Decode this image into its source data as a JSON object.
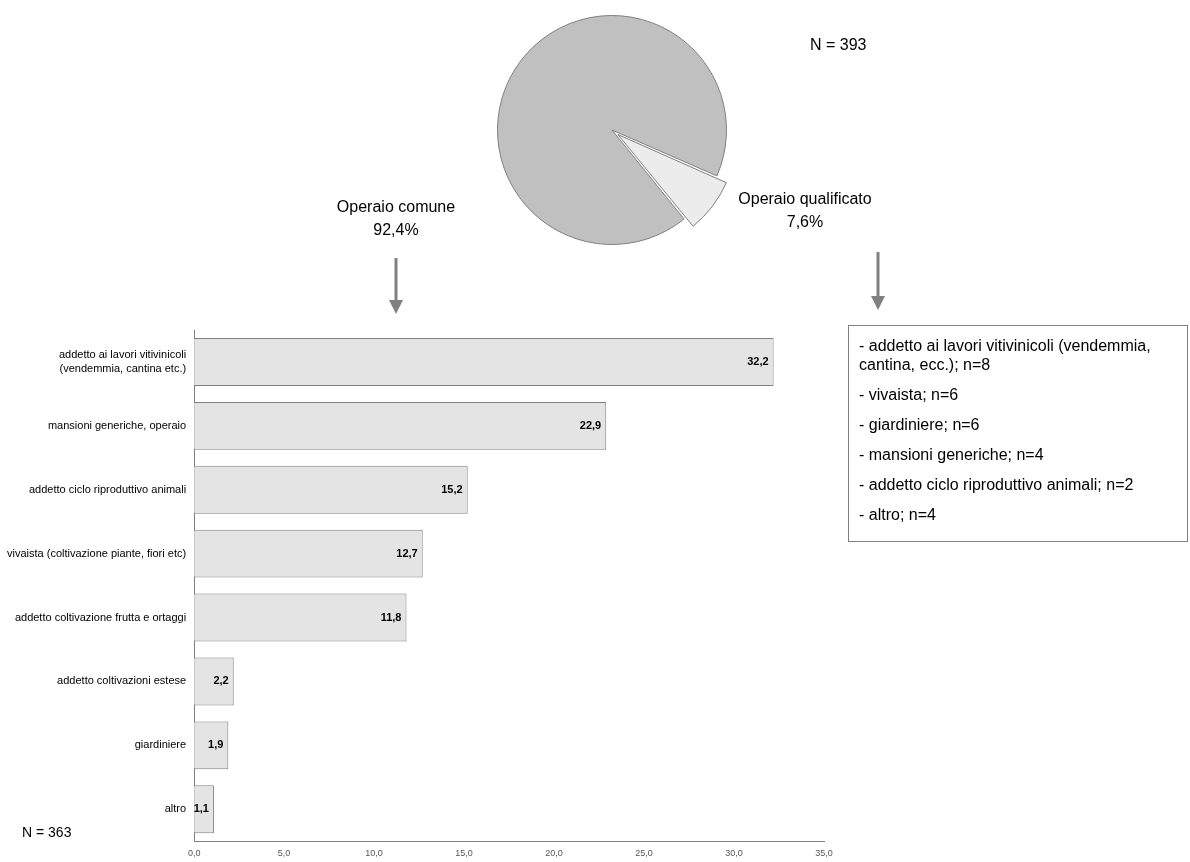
{
  "chart_data": [
    {
      "type": "pie",
      "categories": [
        "Operaio comune",
        "Operaio qualificato"
      ],
      "values": [
        92.4,
        7.6
      ],
      "colors": [
        "#c0c0c0",
        "#ececec"
      ],
      "value_labels": [
        "92,4%",
        "7,6%"
      ],
      "legend": false,
      "annotations": [
        "N = 393"
      ]
    },
    {
      "type": "bar",
      "orientation": "horizontal",
      "categories": [
        "addetto ai lavori vitivinicoli (vendemmia, cantina etc.)",
        "mansioni generiche, operaio",
        "addetto ciclo riproduttivo animali",
        "vivaista (coltivazione piante, fiori etc)",
        "addetto coltivazione frutta e ortaggi",
        "addetto coltivazioni estese",
        "giardiniere",
        "altro"
      ],
      "values": [
        32.2,
        22.9,
        15.2,
        12.7,
        11.8,
        2.2,
        1.9,
        1.1
      ],
      "color": "#e4e4e4",
      "value_labels": [
        "32,2",
        "22,9",
        "15,2",
        "12,7",
        "11,8",
        "2,2",
        "1,9",
        "1,1"
      ],
      "xlim": [
        0,
        35
      ],
      "xticks": [
        {
          "value": 0,
          "label": "0,0"
        },
        {
          "value": 5,
          "label": "5,0"
        },
        {
          "value": 10,
          "label": "10,0"
        },
        {
          "value": 15,
          "label": "15,0"
        },
        {
          "value": 20,
          "label": "20,0"
        },
        {
          "value": 25,
          "label": "25,0"
        },
        {
          "value": 30,
          "label": "30,0"
        },
        {
          "value": 35,
          "label": "35,0"
        }
      ],
      "grid": false,
      "legend": false,
      "annotations": [
        "N = 363"
      ]
    },
    {
      "type": "other",
      "annotations": [
        "- addetto ai lavori vitivinicoli (vendemmia, cantina, ecc.); n=8",
        "- vivaista; n=6",
        "- giardiniere; n=6",
        "- mansioni generiche; n=4",
        "- addetto ciclo riproduttivo animali; n=2",
        "- altro; n=4"
      ]
    }
  ]
}
